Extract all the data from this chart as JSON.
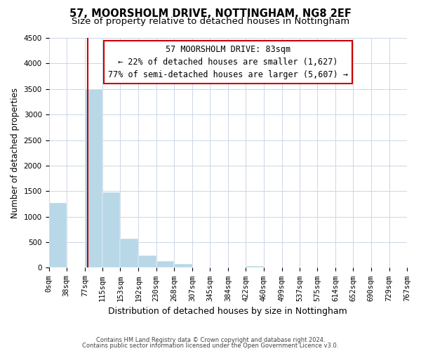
{
  "title": "57, MOORSHOLM DRIVE, NOTTINGHAM, NG8 2EF",
  "subtitle": "Size of property relative to detached houses in Nottingham",
  "xlabel": "Distribution of detached houses by size in Nottingham",
  "ylabel": "Number of detached properties",
  "bar_color": "#b8d8e8",
  "vline_color": "#cc0000",
  "vline_x": 83,
  "bin_edges": [
    0,
    38,
    77,
    115,
    153,
    192,
    230,
    268,
    307,
    345,
    384,
    422,
    460,
    499,
    537,
    575,
    614,
    652,
    690,
    729,
    767
  ],
  "bar_heights": [
    1270,
    0,
    3500,
    1470,
    570,
    245,
    130,
    75,
    0,
    0,
    0,
    30,
    0,
    0,
    0,
    0,
    0,
    0,
    0,
    0
  ],
  "ylim": [
    0,
    4500
  ],
  "yticks": [
    0,
    500,
    1000,
    1500,
    2000,
    2500,
    3000,
    3500,
    4000,
    4500
  ],
  "tick_labels": [
    "0sqm",
    "38sqm",
    "77sqm",
    "115sqm",
    "153sqm",
    "192sqm",
    "230sqm",
    "268sqm",
    "307sqm",
    "345sqm",
    "384sqm",
    "422sqm",
    "460sqm",
    "499sqm",
    "537sqm",
    "575sqm",
    "614sqm",
    "652sqm",
    "690sqm",
    "729sqm",
    "767sqm"
  ],
  "annotation_title": "57 MOORSHOLM DRIVE: 83sqm",
  "annotation_line1": "← 22% of detached houses are smaller (1,627)",
  "annotation_line2": "77% of semi-detached houses are larger (5,607) →",
  "footer1": "Contains HM Land Registry data © Crown copyright and database right 2024.",
  "footer2": "Contains public sector information licensed under the Open Government Licence v3.0.",
  "bg_color": "#ffffff",
  "grid_color": "#ccd6e8",
  "title_fontsize": 10.5,
  "subtitle_fontsize": 9.5,
  "ylabel_fontsize": 8.5,
  "xlabel_fontsize": 9,
  "tick_fontsize": 7.5,
  "ann_fontsize": 8.5,
  "footer_fontsize": 6
}
